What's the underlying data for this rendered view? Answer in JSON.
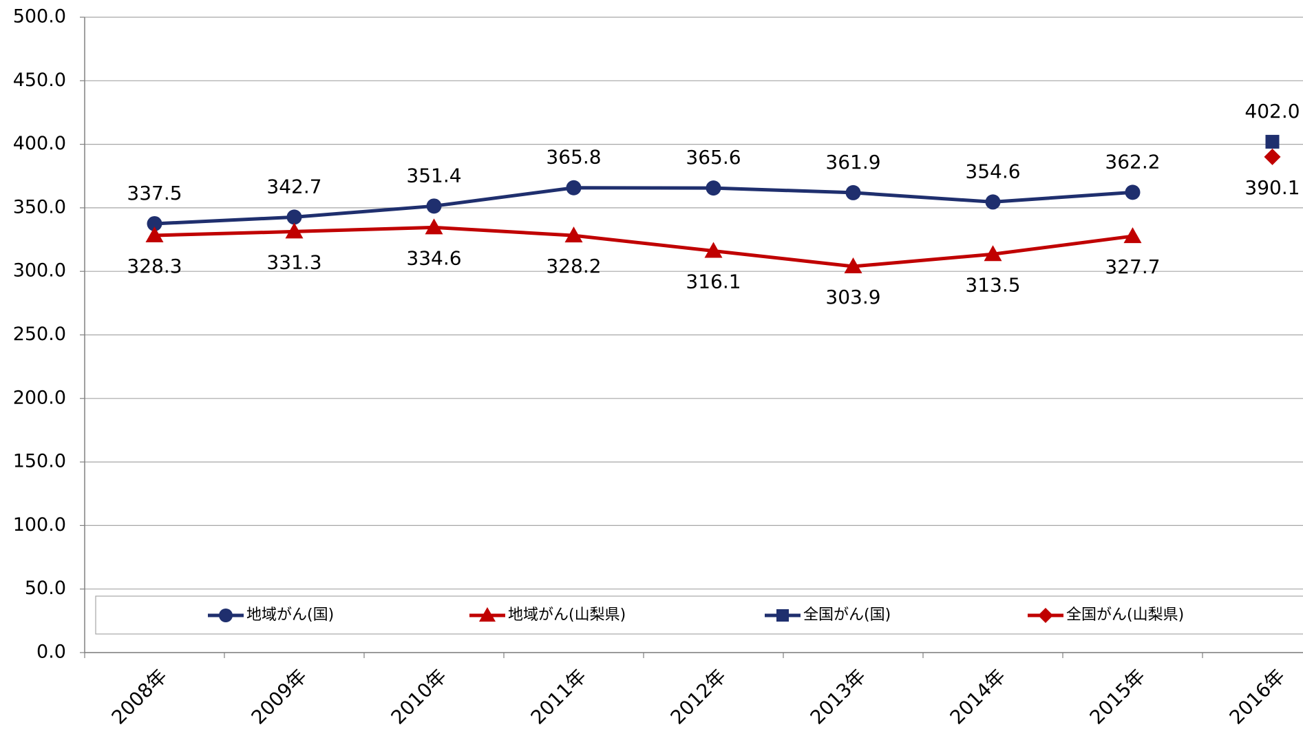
{
  "chart_data": {
    "type": "line",
    "categories": [
      "2008年",
      "2009年",
      "2010年",
      "2011年",
      "2012年",
      "2013年",
      "2014年",
      "2015年",
      "2016年"
    ],
    "series": [
      {
        "name": "地域がん(国)",
        "color": "#1f2f6e",
        "marker": "circle",
        "values": [
          337.5,
          342.7,
          351.4,
          365.8,
          365.6,
          361.9,
          354.6,
          362.2,
          null
        ],
        "value_labels": [
          "337.5",
          "342.7",
          "351.4",
          "365.8",
          "365.6",
          "361.9",
          "354.6",
          "362.2",
          null
        ]
      },
      {
        "name": "地域がん(山梨県)",
        "color": "#c00000",
        "marker": "triangle",
        "values": [
          328.3,
          331.3,
          334.6,
          328.2,
          316.1,
          303.9,
          313.5,
          327.7,
          null
        ],
        "value_labels": [
          "328.3",
          "331.3",
          "334.6",
          "328.2",
          "316.1",
          "303.9",
          "313.5",
          "327.7",
          null
        ]
      },
      {
        "name": "全国がん(国)",
        "color": "#1f2f6e",
        "marker": "square",
        "values": [
          null,
          null,
          null,
          null,
          null,
          null,
          null,
          null,
          402.0
        ],
        "value_labels": [
          null,
          null,
          null,
          null,
          null,
          null,
          null,
          null,
          "402.0"
        ]
      },
      {
        "name": "全国がん(山梨県)",
        "color": "#c00000",
        "marker": "diamond",
        "values": [
          null,
          null,
          null,
          null,
          null,
          null,
          null,
          null,
          390.1
        ],
        "value_labels": [
          null,
          null,
          null,
          null,
          null,
          null,
          null,
          null,
          "390.1"
        ]
      }
    ],
    "ylim": [
      0,
      500
    ],
    "yticks": [
      {
        "value": 0,
        "label": "0.0"
      },
      {
        "value": 50,
        "label": "50.0"
      },
      {
        "value": 100,
        "label": "100.0"
      },
      {
        "value": 150,
        "label": "150.0"
      },
      {
        "value": 200,
        "label": "200.0"
      },
      {
        "value": 250,
        "label": "250.0"
      },
      {
        "value": 300,
        "label": "300.0"
      },
      {
        "value": 350,
        "label": "350.0"
      },
      {
        "value": 400,
        "label": "400.0"
      },
      {
        "value": 450,
        "label": "450.0"
      },
      {
        "value": 500,
        "label": "500.0"
      }
    ],
    "grid": true,
    "legend": "bottom"
  }
}
